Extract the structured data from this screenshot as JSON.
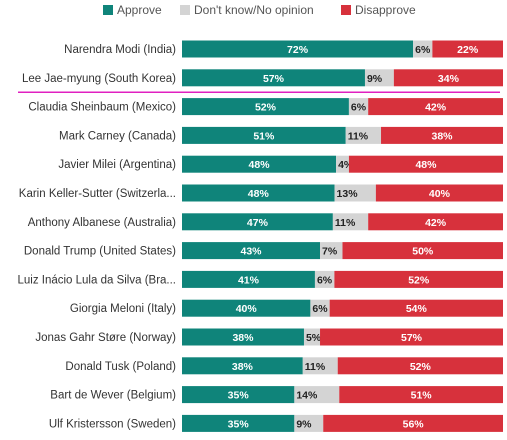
{
  "chart_data": {
    "type": "bar",
    "orientation": "horizontal",
    "stacked": true,
    "legend_position": "top",
    "xlim": [
      0,
      100
    ],
    "series": [
      {
        "name": "Approve",
        "color": "#0f847a"
      },
      {
        "name": "Don't know/No opinion",
        "color": "#d4d4d4"
      },
      {
        "name": "Disapprove",
        "color": "#d7313c"
      }
    ],
    "categories": [
      "Narendra Modi (India)",
      "Lee Jae-myung (South Korea)",
      "Claudia Sheinbaum (Mexico)",
      "Mark Carney (Canada)",
      "Javier Milei (Argentina)",
      "Karin Keller-Sutter (Switzerla...",
      "Anthony Albanese (Australia)",
      "Donald Trump (United States)",
      "Luiz Inácio Lula da Silva (Bra...",
      "Giorgia Meloni (Italy)",
      "Jonas Gahr Støre (Norway)",
      "Donald Tusk (Poland)",
      "Bart de Wever (Belgium)",
      "Ulf Kristersson (Sweden)"
    ],
    "values": [
      [
        72,
        6,
        22
      ],
      [
        57,
        9,
        34
      ],
      [
        52,
        6,
        42
      ],
      [
        51,
        11,
        38
      ],
      [
        48,
        4,
        48
      ],
      [
        48,
        13,
        40
      ],
      [
        47,
        11,
        42
      ],
      [
        43,
        7,
        50
      ],
      [
        41,
        6,
        52
      ],
      [
        40,
        6,
        54
      ],
      [
        38,
        5,
        57
      ],
      [
        38,
        11,
        52
      ],
      [
        35,
        14,
        51
      ],
      [
        35,
        9,
        56
      ]
    ],
    "labels": [
      [
        "72%",
        "6%",
        "22%"
      ],
      [
        "57%",
        "9%",
        "34%"
      ],
      [
        "52%",
        "6%",
        "42%"
      ],
      [
        "51%",
        "11%",
        "38%"
      ],
      [
        "48%",
        "4%",
        "48%"
      ],
      [
        "48%",
        "13%",
        "40%"
      ],
      [
        "47%",
        "11%",
        "42%"
      ],
      [
        "43%",
        "7%",
        "50%"
      ],
      [
        "41%",
        "6%",
        "52%"
      ],
      [
        "40%",
        "6%",
        "54%"
      ],
      [
        "38%",
        "5%",
        "57%"
      ],
      [
        "38%",
        "11%",
        "52%"
      ],
      [
        "35%",
        "14%",
        "51%"
      ],
      [
        "35%",
        "9%",
        "56%"
      ]
    ],
    "highlight_separator_after_category": "Lee Jae-myung (South Korea)",
    "highlight_color": "#e020c0"
  }
}
